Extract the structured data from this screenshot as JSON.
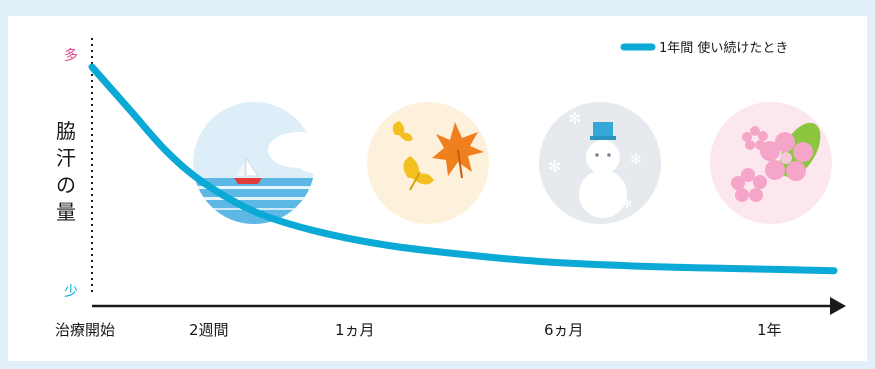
{
  "chart_data": {
    "type": "line",
    "series": [
      {
        "name": "1年間 使い続けたとき",
        "color": "#0aa9d6",
        "points": [
          {
            "x": 0.0,
            "y": 100
          },
          {
            "x": 0.05,
            "y": 80
          },
          {
            "x": 0.1,
            "y": 60
          },
          {
            "x": 0.15,
            "y": 45
          },
          {
            "x": 0.22,
            "y": 31
          },
          {
            "x": 0.3,
            "y": 22
          },
          {
            "x": 0.4,
            "y": 15
          },
          {
            "x": 0.52,
            "y": 10
          },
          {
            "x": 0.62,
            "y": 7
          },
          {
            "x": 0.75,
            "y": 5
          },
          {
            "x": 0.87,
            "y": 4
          },
          {
            "x": 1.0,
            "y": 3
          }
        ]
      }
    ],
    "xticks": [
      {
        "x": 0.0,
        "label": "治療開始"
      },
      {
        "x": 0.18,
        "label": "2週間"
      },
      {
        "x": 0.4,
        "label": "1ヵ月"
      },
      {
        "x": 0.72,
        "label": "6ヵ月"
      },
      {
        "x": 0.94,
        "label": "1年"
      }
    ],
    "ylabel": "脇汗の量",
    "y_high_label": "多",
    "y_low_label": "少",
    "xlim": [
      0,
      1
    ],
    "ylim": [
      0,
      100
    ],
    "legend_position": "top-right",
    "grid": false
  },
  "illustrations": [
    {
      "icon": "summer-sea-icon",
      "bg": "#ddeef9"
    },
    {
      "icon": "autumn-leaves-icon",
      "bg": "#fdf1dc"
    },
    {
      "icon": "winter-snowman-icon",
      "bg": "#e6eaee"
    },
    {
      "icon": "spring-sakura-icon",
      "bg": "#fde7ef"
    }
  ],
  "colors": {
    "line": "#0aa9d6",
    "many": "#e0468c",
    "few": "#0aa9d6",
    "axis": "#1a1a1a",
    "background": "#e2f1f9"
  }
}
